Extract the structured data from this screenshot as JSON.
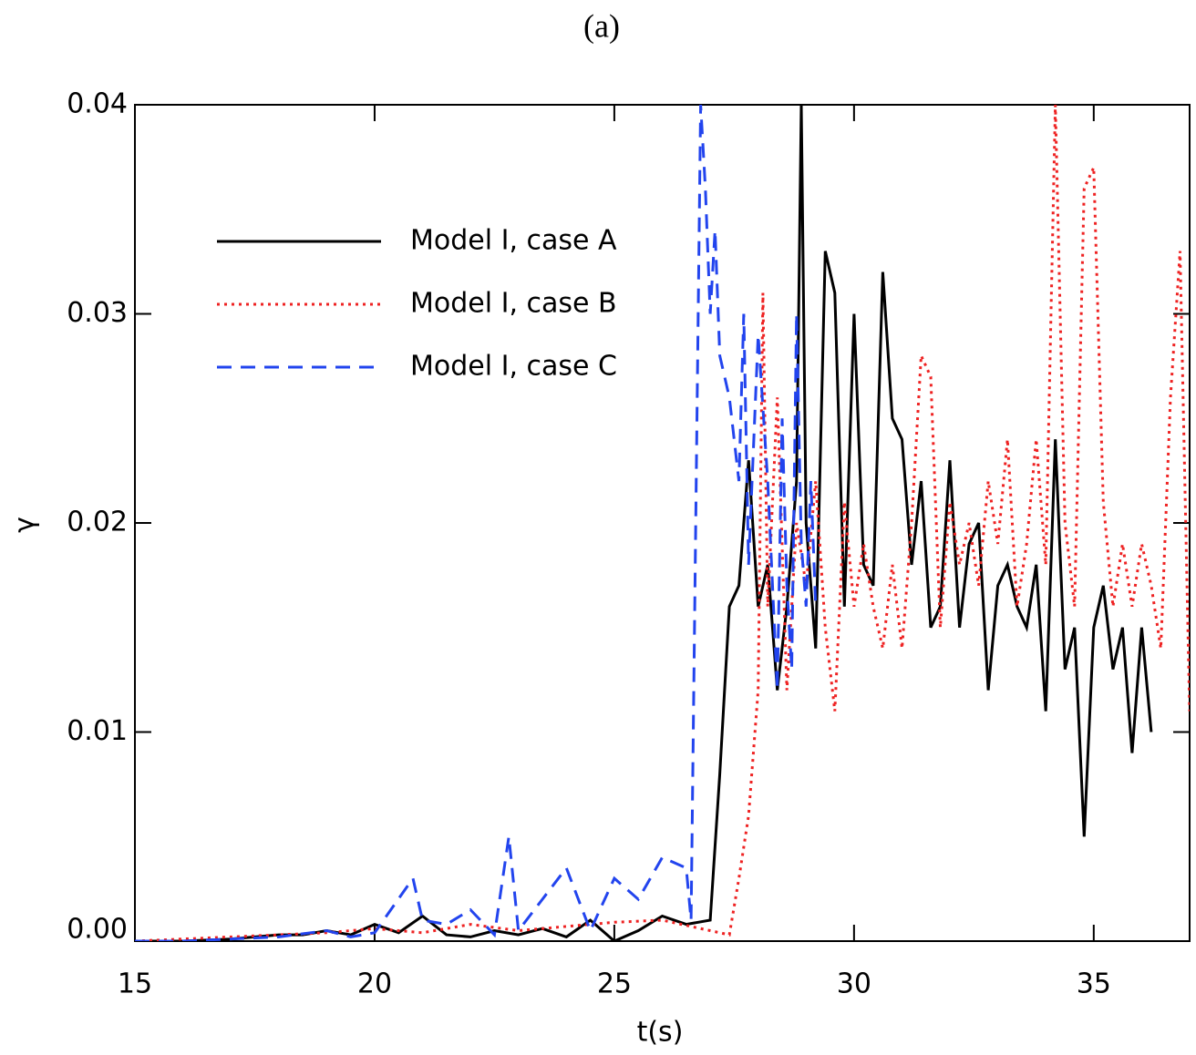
{
  "chart_data": {
    "type": "line",
    "title": "(a)",
    "x_label": "t(s)",
    "y_label": "γ",
    "xlim": [
      15,
      37
    ],
    "xticks": [
      15,
      20,
      25,
      30,
      35
    ],
    "ylim": [
      0,
      0.04
    ],
    "yticks": [
      {
        "value": 0,
        "label": "0.00"
      },
      0.01,
      0.02,
      0.03,
      0.04
    ],
    "legend": "upper left",
    "series": [
      {
        "name": "Model I, case A",
        "color": "#000000",
        "style": "solid",
        "x": [
          15,
          16,
          17,
          17.5,
          18,
          18.5,
          19,
          19.5,
          20,
          20.5,
          21,
          21.5,
          22,
          22.5,
          23,
          23.5,
          24,
          24.5,
          25,
          25.5,
          26,
          26.5,
          27,
          27.2,
          27.4,
          27.6,
          27.8,
          28,
          28.2,
          28.4,
          28.6,
          28.8,
          28.9,
          29,
          29.2,
          29.4,
          29.6,
          29.8,
          30,
          30.2,
          30.4,
          30.6,
          30.8,
          31,
          31.2,
          31.4,
          31.6,
          31.8,
          32,
          32.2,
          32.4,
          32.6,
          32.8,
          33,
          33.2,
          33.4,
          33.6,
          33.8,
          34,
          34.2,
          34.4,
          34.6,
          34.8,
          35,
          35.2,
          35.4,
          35.6,
          35.8,
          36,
          36.2
        ],
        "values": [
          0,
          0,
          0.0001,
          0.0002,
          0.0003,
          0.0003,
          0.0005,
          0.0003,
          0.0008,
          0.0004,
          0.0012,
          0.0003,
          0.0002,
          0.0005,
          0.0003,
          0.0006,
          0.0002,
          0.001,
          0,
          0.0005,
          0.0012,
          0.0008,
          0.001,
          0.008,
          0.016,
          0.017,
          0.023,
          0.016,
          0.018,
          0.012,
          0.016,
          0.022,
          0.04,
          0.02,
          0.014,
          0.033,
          0.031,
          0.016,
          0.03,
          0.018,
          0.017,
          0.032,
          0.025,
          0.024,
          0.018,
          0.022,
          0.015,
          0.016,
          0.023,
          0.015,
          0.019,
          0.02,
          0.012,
          0.017,
          0.018,
          0.016,
          0.015,
          0.018,
          0.011,
          0.024,
          0.013,
          0.015,
          0.005,
          0.015,
          0.017,
          0.013,
          0.015,
          0.009,
          0.015,
          0.01
        ]
      },
      {
        "name": "Model I, case B",
        "color": "#ee2222",
        "style": "dotted",
        "x": [
          15,
          16,
          17,
          18,
          19,
          20,
          21,
          22,
          23,
          24,
          25,
          26,
          27,
          27.4,
          27.6,
          27.8,
          28,
          28.1,
          28.2,
          28.4,
          28.6,
          28.8,
          29,
          29.2,
          29.4,
          29.6,
          29.8,
          30,
          30.2,
          30.4,
          30.6,
          30.8,
          31,
          31.2,
          31.4,
          31.6,
          31.8,
          32,
          32.2,
          32.4,
          32.6,
          32.8,
          33,
          33.2,
          33.4,
          33.6,
          33.8,
          34,
          34.2,
          34.4,
          34.6,
          34.8,
          35,
          35.2,
          35.4,
          35.6,
          35.8,
          36,
          36.2,
          36.4,
          36.6,
          36.8,
          37
        ],
        "values": [
          0,
          0.0001,
          0.0002,
          0.0003,
          0.0004,
          0.0006,
          0.0004,
          0.0008,
          0.0005,
          0.0007,
          0.0009,
          0.001,
          0.0005,
          0.0003,
          0.003,
          0.006,
          0.012,
          0.031,
          0.016,
          0.026,
          0.012,
          0.02,
          0.017,
          0.022,
          0.015,
          0.011,
          0.021,
          0.016,
          0.019,
          0.016,
          0.014,
          0.018,
          0.014,
          0.02,
          0.028,
          0.027,
          0.015,
          0.021,
          0.018,
          0.02,
          0.017,
          0.022,
          0.019,
          0.024,
          0.016,
          0.019,
          0.024,
          0.018,
          0.04,
          0.02,
          0.016,
          0.036,
          0.037,
          0.021,
          0.016,
          0.019,
          0.016,
          0.019,
          0.017,
          0.014,
          0.026,
          0.033,
          0.011
        ]
      },
      {
        "name": "Model I, case C",
        "color": "#2244ee",
        "style": "dashed",
        "x": [
          15,
          16,
          17,
          18,
          19,
          19.5,
          20,
          20.8,
          21,
          21.5,
          22,
          22.5,
          22.8,
          23,
          23.5,
          24,
          24.5,
          25,
          25.5,
          26,
          26.5,
          26.6,
          26.8,
          26.9,
          27,
          27.1,
          27.2,
          27.4,
          27.6,
          27.7,
          27.8,
          28,
          28.2,
          28.4,
          28.5,
          28.6,
          28.7,
          28.8,
          28.9,
          29,
          29.1,
          29.2
        ],
        "values": [
          0,
          0,
          0.0001,
          0.0002,
          0.0005,
          0.0002,
          0.0004,
          0.003,
          0.001,
          0.0008,
          0.0015,
          0.0003,
          0.005,
          0.0005,
          0.002,
          0.0035,
          0.0005,
          0.003,
          0.002,
          0.004,
          0.0035,
          0.001,
          0.04,
          0.036,
          0.03,
          0.034,
          0.028,
          0.026,
          0.022,
          0.03,
          0.018,
          0.029,
          0.022,
          0.012,
          0.025,
          0.017,
          0.013,
          0.03,
          0.019,
          0.016,
          0.022,
          0.016
        ]
      }
    ]
  }
}
